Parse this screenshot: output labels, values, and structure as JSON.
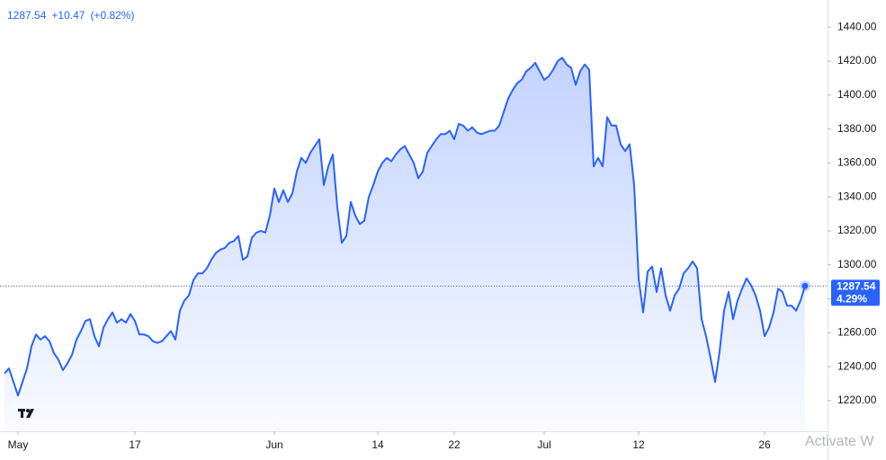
{
  "header": {
    "price": "1287.54",
    "change": "+10.47",
    "change_pct": "(+0.82%)"
  },
  "watermark": "Activate W",
  "chart_data": {
    "type": "line",
    "series": [
      {
        "color": "#2962ff",
        "x": [
          0,
          1,
          2,
          3,
          4,
          5,
          6,
          7,
          8,
          9,
          10,
          11,
          12,
          13,
          14,
          15,
          16,
          17,
          18,
          19,
          20,
          21,
          22,
          23,
          24,
          25,
          26,
          27,
          28,
          29,
          30,
          31,
          32,
          33,
          34,
          35,
          36,
          37,
          38,
          39,
          40,
          41,
          42,
          43,
          44,
          45,
          46,
          47,
          48,
          49,
          50,
          51,
          52,
          53,
          54,
          55,
          56,
          57,
          58,
          59,
          60,
          61,
          62,
          63,
          64,
          65,
          66,
          67,
          68,
          69,
          70,
          71,
          72,
          73,
          74,
          75,
          76,
          77,
          78,
          79,
          80,
          81,
          82,
          83,
          84,
          85,
          86,
          87,
          88,
          89,
          90,
          91,
          92,
          93,
          94,
          95,
          96,
          97,
          98,
          99,
          100,
          101,
          102,
          103,
          104,
          105,
          106,
          107,
          108,
          109,
          110,
          111,
          112,
          113,
          114,
          115,
          116,
          117,
          118,
          119,
          120,
          121,
          122,
          123,
          124,
          125,
          126,
          127,
          128,
          129,
          130,
          131,
          132,
          133,
          134,
          135,
          136,
          137,
          138,
          139,
          140,
          141,
          142,
          143,
          144,
          145,
          146,
          147,
          148,
          149,
          150,
          151,
          152,
          153,
          154,
          155,
          156,
          157,
          158,
          159,
          160,
          161,
          162,
          163,
          164,
          165,
          166,
          167,
          168,
          169,
          170,
          171,
          172,
          173,
          174,
          175,
          176,
          177,
          178
        ],
        "values": [
          1236,
          1239,
          1231,
          1223,
          1231,
          1239,
          1252,
          1259,
          1256,
          1258,
          1255,
          1248,
          1244,
          1238,
          1242,
          1247,
          1256,
          1261,
          1267,
          1268,
          1258,
          1252,
          1263,
          1268,
          1272,
          1266,
          1268,
          1266,
          1271,
          1267,
          1259,
          1259,
          1258,
          1255,
          1254,
          1255,
          1258,
          1261,
          1256,
          1273,
          1279,
          1282,
          1291,
          1295,
          1295,
          1298,
          1303,
          1307,
          1309,
          1310,
          1313,
          1314,
          1317,
          1303,
          1305,
          1316,
          1319,
          1320,
          1319,
          1329,
          1345,
          1337,
          1344,
          1337,
          1342,
          1355,
          1363,
          1360,
          1366,
          1370,
          1374,
          1347,
          1358,
          1365,
          1334,
          1313,
          1317,
          1337,
          1329,
          1324,
          1326,
          1340,
          1347,
          1355,
          1360,
          1363,
          1361,
          1365,
          1368,
          1370,
          1365,
          1360,
          1351,
          1355,
          1366,
          1370,
          1374,
          1377,
          1377,
          1379,
          1374,
          1383,
          1382,
          1379,
          1381,
          1378,
          1377,
          1378,
          1379,
          1379,
          1382,
          1390,
          1398,
          1403,
          1407,
          1409,
          1414,
          1416,
          1419,
          1414,
          1409,
          1411,
          1415,
          1420,
          1422,
          1418,
          1416,
          1406,
          1414,
          1418,
          1415,
          1358,
          1363,
          1358,
          1387,
          1382,
          1382,
          1371,
          1367,
          1371,
          1347,
          1292,
          1272,
          1296,
          1299,
          1284,
          1298,
          1282,
          1273,
          1282,
          1286,
          1295,
          1298,
          1302,
          1298,
          1268,
          1258,
          1245,
          1231,
          1249,
          1273,
          1284,
          1268,
          1279,
          1286,
          1292,
          1288,
          1282,
          1273,
          1258,
          1263,
          1272,
          1286,
          1284,
          1276,
          1276,
          1273,
          1279,
          1287.54
        ]
      }
    ],
    "last_value": 1287.54,
    "last_change_label": "4.29%",
    "xlim": [
      -1,
      183
    ],
    "xticks": [
      {
        "value": 3,
        "label": "May"
      },
      {
        "value": 29,
        "label": "17"
      },
      {
        "value": 60,
        "label": "Jun"
      },
      {
        "value": 83,
        "label": "14"
      },
      {
        "value": 100,
        "label": "22"
      },
      {
        "value": 120,
        "label": "Jul"
      },
      {
        "value": 141,
        "label": "12"
      },
      {
        "value": 169,
        "label": "26"
      }
    ],
    "ylim": [
      1202,
      1456
    ],
    "yticks": [
      {
        "value": 1220,
        "label": "1220.00"
      },
      {
        "value": 1240,
        "label": "1240.00"
      },
      {
        "value": 1260,
        "label": "1260.00"
      },
      {
        "value": 1280,
        "label": "1280.00"
      },
      {
        "value": 1300,
        "label": "1300.00"
      },
      {
        "value": 1320,
        "label": "1320.00"
      },
      {
        "value": 1340,
        "label": "1340.00"
      },
      {
        "value": 1360,
        "label": "1360.00"
      },
      {
        "value": 1380,
        "label": "1380.00"
      },
      {
        "value": 1400,
        "label": "1400.00"
      },
      {
        "value": 1420,
        "label": "1420.00"
      },
      {
        "value": 1440,
        "label": "1440.00"
      }
    ]
  }
}
